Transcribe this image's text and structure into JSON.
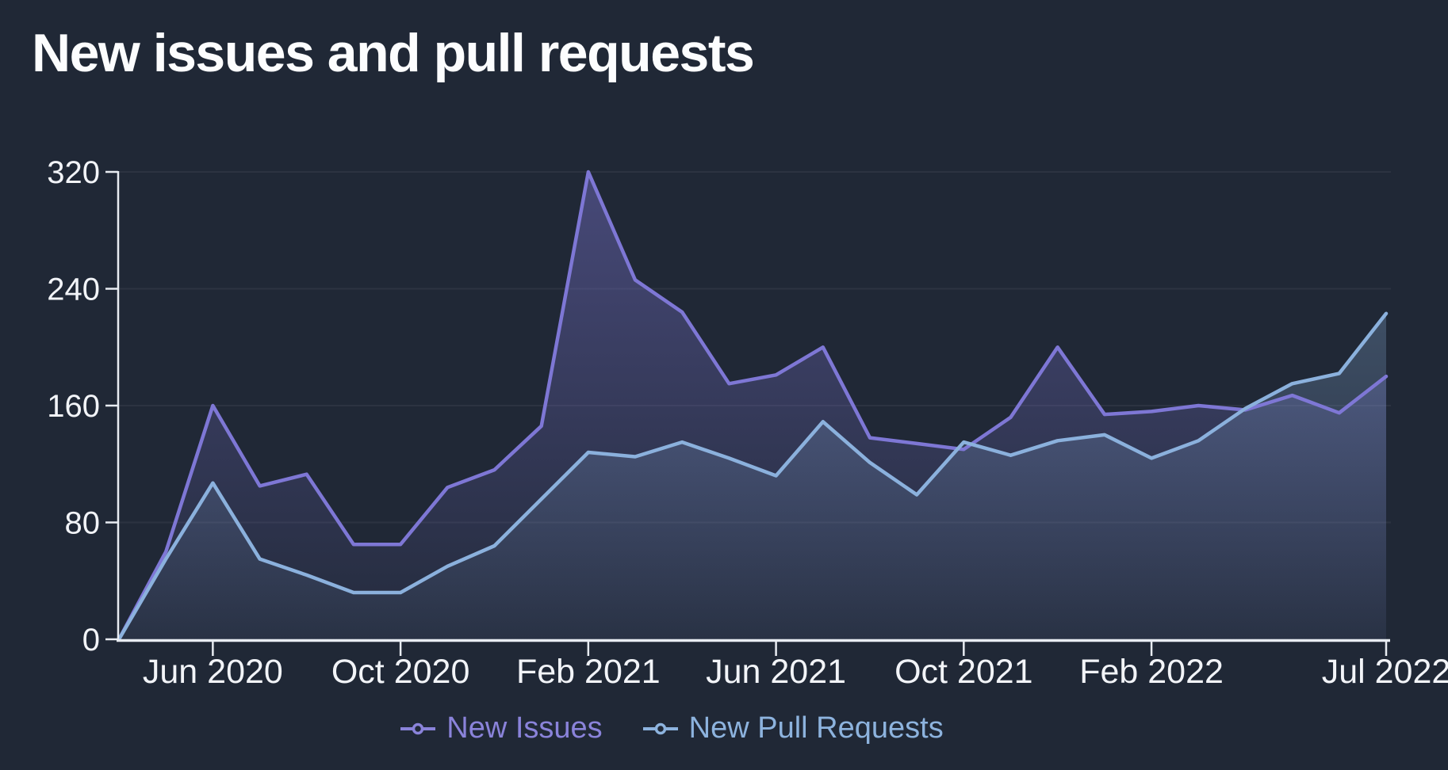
{
  "page": {
    "background": "#202836"
  },
  "header": {
    "title": "New issues and pull requests"
  },
  "legend": {
    "items": [
      {
        "label": "New Issues",
        "color": "#8a83da"
      },
      {
        "label": "New Pull Requests",
        "color": "#8db3de"
      }
    ]
  },
  "chart_data": {
    "type": "area",
    "title": "New issues and pull requests",
    "x": [
      "Apr 2020",
      "May 2020",
      "Jun 2020",
      "Jul 2020",
      "Aug 2020",
      "Sep 2020",
      "Oct 2020",
      "Nov 2020",
      "Dec 2020",
      "Jan 2021",
      "Feb 2021",
      "Mar 2021",
      "Apr 2021",
      "May 2021",
      "Jun 2021",
      "Jul 2021",
      "Aug 2021",
      "Sep 2021",
      "Oct 2021",
      "Nov 2021",
      "Dec 2021",
      "Jan 2022",
      "Feb 2022",
      "Mar 2022",
      "Apr 2022",
      "May 2022",
      "Jun 2022",
      "Jul 2022"
    ],
    "series": [
      {
        "name": "New Issues",
        "color": "#7e77d5",
        "values": [
          0,
          60,
          160,
          105,
          113,
          65,
          65,
          104,
          116,
          146,
          320,
          246,
          224,
          175,
          181,
          200,
          138,
          134,
          130,
          152,
          200,
          154,
          156,
          160,
          157,
          167,
          155,
          180
        ]
      },
      {
        "name": "New Pull Requests",
        "color": "#8bb1dd",
        "values": [
          0,
          55,
          107,
          55,
          44,
          32,
          32,
          50,
          64,
          96,
          128,
          125,
          135,
          124,
          112,
          149,
          121,
          99,
          135,
          126,
          136,
          140,
          124,
          136,
          158,
          175,
          182,
          223
        ]
      }
    ],
    "y_ticks": [
      0,
      80,
      160,
      240,
      320
    ],
    "ylim": [
      0,
      320
    ],
    "x_tick_labels": [
      {
        "label": "Jun 2020",
        "index": 2
      },
      {
        "label": "Oct 2020",
        "index": 6
      },
      {
        "label": "Feb 2021",
        "index": 10
      },
      {
        "label": "Jun 2021",
        "index": 14
      },
      {
        "label": "Oct 2021",
        "index": 18
      },
      {
        "label": "Feb 2022",
        "index": 22
      },
      {
        "label": "Jul 2022",
        "index": 27
      }
    ],
    "grid": "horizontal",
    "legend_position": "bottom",
    "axis_color": "#e8ecf2",
    "label_color": "#f2f4f8"
  }
}
